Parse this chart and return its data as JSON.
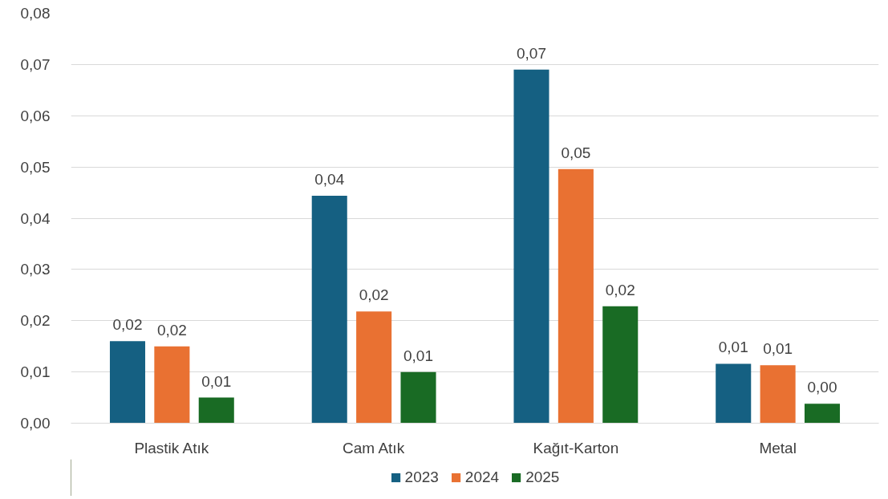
{
  "chart_data": {
    "type": "bar",
    "categories": [
      "Plastik Atık",
      "Cam Atık",
      "Kağıt-Karton",
      "Metal"
    ],
    "series": [
      {
        "name": "2023",
        "color": "#156082",
        "values": [
          0.016,
          0.0444,
          0.069,
          0.0116
        ],
        "value_labels": [
          "0,02",
          "0,04",
          "0,07",
          "0,01"
        ]
      },
      {
        "name": "2024",
        "color": "#e97132",
        "values": [
          0.015,
          0.0218,
          0.0496,
          0.0113
        ],
        "value_labels": [
          "0,02",
          "0,02",
          "0,05",
          "0,01"
        ]
      },
      {
        "name": "2025",
        "color": "#196b24",
        "values": [
          0.005,
          0.01,
          0.0228,
          0.0038
        ],
        "value_labels": [
          "0,01",
          "0,01",
          "0,02",
          "0,00"
        ]
      }
    ],
    "ylim": [
      0,
      0.08
    ],
    "yticks": [
      {
        "value": 0,
        "label": "0,00"
      },
      {
        "value": 0.01,
        "label": "0,01"
      },
      {
        "value": 0.02,
        "label": "0,02"
      },
      {
        "value": 0.03,
        "label": "0,03"
      },
      {
        "value": 0.04,
        "label": "0,04"
      },
      {
        "value": 0.05,
        "label": "0,05"
      },
      {
        "value": 0.06,
        "label": "0,06"
      },
      {
        "value": 0.07,
        "label": "0,07"
      },
      {
        "value": 0.08,
        "label": "0,08"
      }
    ],
    "grid": "y",
    "legend": "bottom"
  }
}
